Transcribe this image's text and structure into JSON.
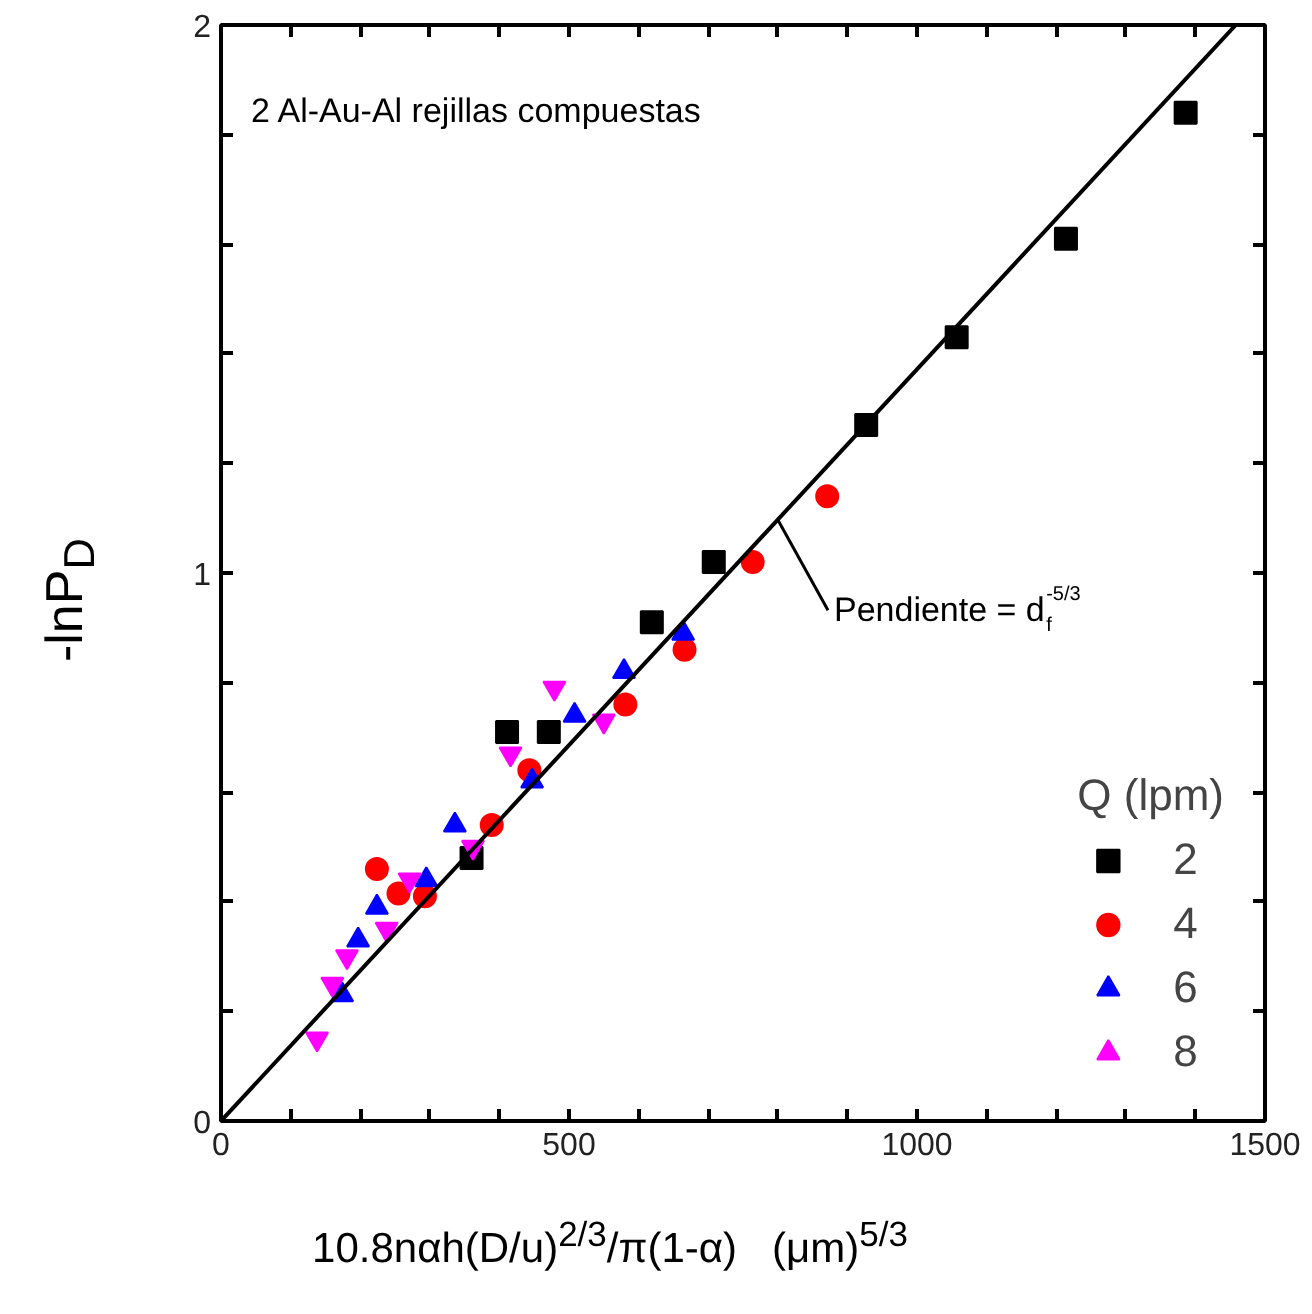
{
  "chart_data": {
    "type": "scatter",
    "xlabel": "10.8nαh(D/u)$^{2/3}$/π(1-α)   (μm)$^{5/3}$",
    "ylabel": "-lnP$_{D}$",
    "legend_title": "Q (lpm)",
    "annotations": [
      "2 Al-Au-Al rejillas compuestas",
      {
        "text": "Pendiente = d$_{f}$$^{-5/3}$",
        "x": 800,
        "y": 1.097
      }
    ],
    "xlim": [
      0,
      1500
    ],
    "ylim": [
      0,
      2
    ],
    "xticks": [
      0,
      {
        "value": 100,
        "label": null
      },
      {
        "value": 200,
        "label": null
      },
      {
        "value": 300,
        "label": null
      },
      {
        "value": 400,
        "label": null
      },
      500,
      {
        "value": 600,
        "label": null
      },
      {
        "value": 700,
        "label": null
      },
      {
        "value": 800,
        "label": null
      },
      {
        "value": 900,
        "label": null
      },
      1000,
      {
        "value": 1100,
        "label": null
      },
      {
        "value": 1200,
        "label": null
      },
      {
        "value": 1300,
        "label": null
      },
      {
        "value": 1400,
        "label": null
      },
      1500
    ],
    "yticks": [
      0,
      {
        "value": 0.2,
        "label": null
      },
      {
        "value": 0.4,
        "label": null
      },
      {
        "value": 0.6,
        "label": null
      },
      {
        "value": 0.8,
        "label": null
      },
      1,
      {
        "value": 1.2,
        "label": null
      },
      {
        "value": 1.4,
        "label": null
      },
      {
        "value": 1.6,
        "label": null
      },
      {
        "value": 1.8,
        "label": null
      },
      2
    ],
    "grid": false,
    "legend": "bottom right",
    "series": [
      {
        "name": "2",
        "color": "#000000",
        "marker": "square",
        "x": [
          360,
          411,
          471,
          619,
          708,
          927,
          1057,
          1214,
          1386
        ],
        "values": [
          0.48,
          0.71,
          0.71,
          0.91,
          1.02,
          1.27,
          1.43,
          1.61,
          1.84
        ]
      },
      {
        "name": "4",
        "color": "#ff0000",
        "marker": "circle",
        "x": [
          224,
          255,
          293,
          389,
          443,
          581,
          666,
          764,
          871
        ],
        "values": [
          0.46,
          0.415,
          0.41,
          0.54,
          0.64,
          0.76,
          0.86,
          1.02,
          1.14
        ]
      },
      {
        "name": "6",
        "color": "#0000ff",
        "marker": "triangle",
        "x": [
          174,
          197,
          224,
          295,
          336,
          447,
          508,
          579,
          664
        ],
        "values": [
          0.23,
          0.33,
          0.39,
          0.44,
          0.54,
          0.62,
          0.74,
          0.82,
          0.89
        ]
      },
      {
        "name": "8",
        "color": "#ff00ff",
        "marker": "triangle",
        "x": [
          138,
          160,
          181,
          238,
          271,
          362,
          416,
          479,
          550
        ],
        "values": [
          0.15,
          0.25,
          0.3,
          0.35,
          0.44,
          0.5,
          0.67,
          0.79,
          0.73
        ]
      },
      {
        "type": "line",
        "color": "#000000",
        "line_style": "solid",
        "x": [
          0,
          1458
        ],
        "values": [
          0,
          2
        ]
      }
    ]
  }
}
